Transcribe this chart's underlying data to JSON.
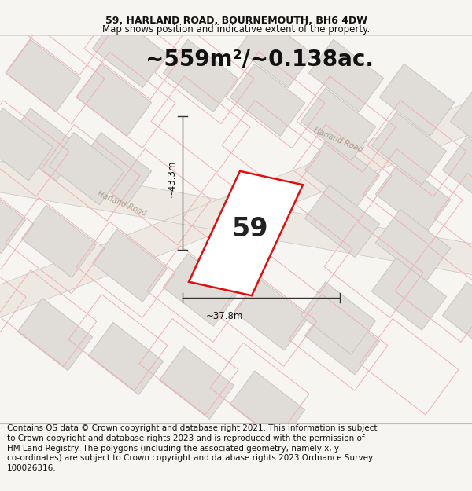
{
  "title_line1": "59, HARLAND ROAD, BOURNEMOUTH, BH6 4DW",
  "title_line2": "Map shows position and indicative extent of the property.",
  "area_text": "~559m²/~0.138ac.",
  "plot_number": "59",
  "dim_vertical": "~43.3m",
  "dim_horizontal": "~37.8m",
  "road_label1": "Harland Road",
  "road_label2": "Harland Road",
  "footer_lines": "Contains OS data © Crown copyright and database right 2021. This information is subject\nto Crown copyright and database rights 2023 and is reproduced with the permission of\nHM Land Registry. The polygons (including the associated geometry, namely x, y\nco-ordinates) are subject to Crown copyright and database rights 2023 Ordnance Survey\n100026316.",
  "bg_color": "#f7f5f2",
  "map_bg": "#f9f7f4",
  "building_fill": "#e0ddd8",
  "building_edge": "#c8c4be",
  "building_outline_pink": "#f0b0b0",
  "plot_outline_color": "#dd1111",
  "plot_fill_color": "#ffffff",
  "dim_line_color": "#333333",
  "road_label_color": "#aaa090",
  "title_fontsize": 9,
  "subtitle_fontsize": 8.5,
  "area_fontsize": 20,
  "number_fontsize": 24,
  "footer_fontsize": 7.5,
  "dim_fontsize": 8.5
}
